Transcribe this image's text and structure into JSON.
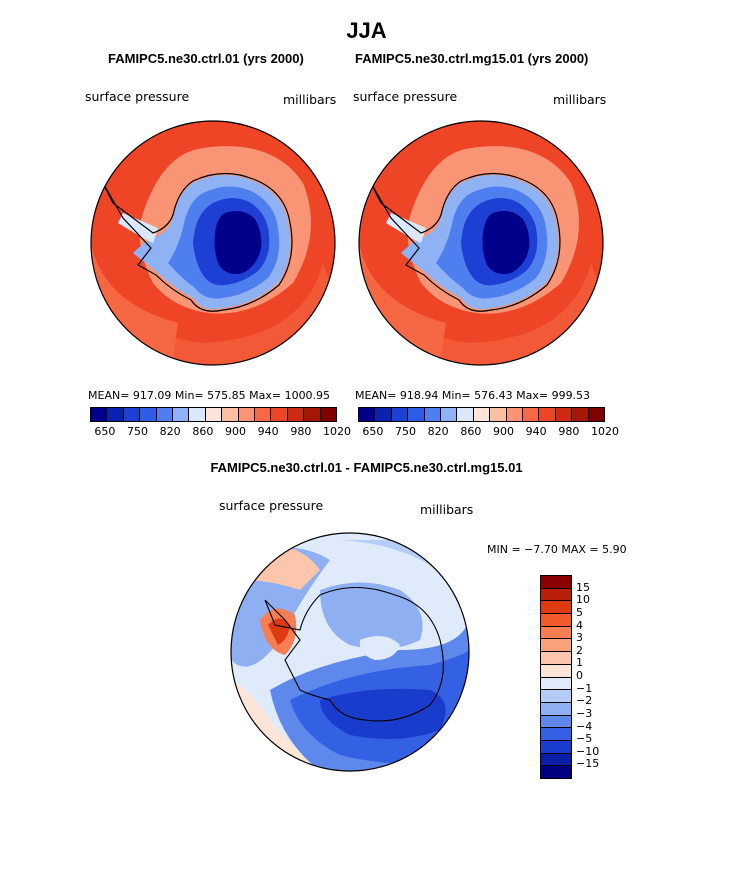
{
  "title": "JJA",
  "panels": [
    {
      "run_title": "FAMIPC5.ne30.ctrl.01 (yrs 2000)",
      "left_label": "surface pressure",
      "right_label": "millibars",
      "stats": "MEAN= 917.09   Min= 575.85   Max= 1000.95"
    },
    {
      "run_title": "FAMIPC5.ne30.ctrl.mg15.01 (yrs 2000)",
      "left_label": "surface pressure",
      "right_label": "millibars",
      "stats": "MEAN= 918.94   Min= 576.43   Max= 999.53"
    }
  ],
  "colorbar": {
    "ticks": [
      "650",
      "750",
      "820",
      "860",
      "900",
      "940",
      "980",
      "1020"
    ],
    "colors": [
      "#00008b",
      "#0a22b0",
      "#1e3fd4",
      "#2e5ce6",
      "#4f7fef",
      "#8fb2f5",
      "#dbe7fb",
      "#fde5d9",
      "#fbbfa3",
      "#f99574",
      "#f56a45",
      "#ee4526",
      "#d12a13",
      "#a51708",
      "#800000"
    ]
  },
  "difference": {
    "title": "FAMIPC5.ne30.ctrl.01 - FAMIPC5.ne30.ctrl.mg15.01",
    "left_label": "surface pressure",
    "right_label": "millibars",
    "stats": "MIN =   −7.70 MAX =    5.90",
    "colorbar": {
      "labels": [
        "15",
        "10",
        "5",
        "4",
        "3",
        "2",
        "1",
        "0",
        "−1",
        "−2",
        "−3",
        "−4",
        "−5",
        "−10",
        "−15"
      ],
      "colors": [
        "#8b0000",
        "#b8200a",
        "#dd3a12",
        "#f25a2c",
        "#f77d52",
        "#f9a27c",
        "#fbc6ab",
        "#fde6d8",
        "#dfeafb",
        "#b5ccf6",
        "#8eb0f2",
        "#5f88ec",
        "#3461e3",
        "#1a3ccc",
        "#0a1ea6",
        "#000080"
      ]
    }
  },
  "colors": {
    "land_deep": "#000080",
    "ocean_warm": "#ee4526",
    "coast": "#000000"
  }
}
